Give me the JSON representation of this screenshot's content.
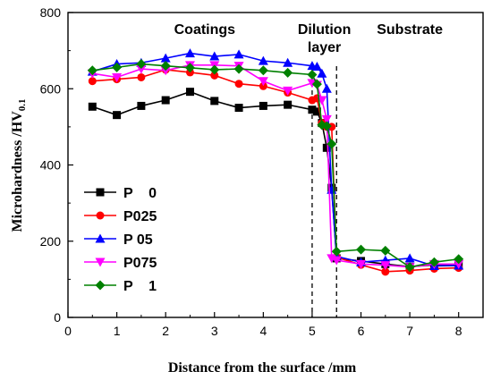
{
  "chart_data": {
    "type": "line",
    "xlabel": "Distance from the surface /mm",
    "ylabel_main": "Microhardness /HV",
    "ylabel_sub": "0.1",
    "xlim": [
      0,
      8.5
    ],
    "ylim": [
      0,
      800
    ],
    "xticks": [
      0,
      1,
      2,
      3,
      4,
      5,
      6,
      7,
      8
    ],
    "yticks": [
      0,
      200,
      400,
      600,
      800
    ],
    "grid": false,
    "legend_position": "bottom-left",
    "regions": [
      {
        "lines": [
          "Coatings"
        ],
        "x": 2.8
      },
      {
        "lines": [
          "Dilution",
          "layer"
        ],
        "x": 5.25
      },
      {
        "lines": [
          "Substrate"
        ],
        "x": 7.0
      }
    ],
    "boundaries": [
      5.0,
      5.5
    ],
    "series": [
      {
        "name": "P    0",
        "color": "#000000",
        "marker": "square",
        "x": [
          0.5,
          1.0,
          1.5,
          2.0,
          2.5,
          3.0,
          3.5,
          4.0,
          4.5,
          5.0,
          5.1,
          5.2,
          5.3,
          5.4,
          5.5,
          6.0,
          6.5,
          7.0,
          7.5,
          8.0
        ],
        "y": [
          553,
          531,
          555,
          570,
          592,
          568,
          550,
          555,
          558,
          545,
          540,
          510,
          445,
          340,
          155,
          148,
          140,
          133,
          138,
          138
        ]
      },
      {
        "name": "P025",
        "color": "#ff0000",
        "marker": "circle",
        "x": [
          0.5,
          1.0,
          1.5,
          2.0,
          2.5,
          3.0,
          3.5,
          4.0,
          4.5,
          5.0,
          5.1,
          5.2,
          5.3,
          5.4,
          5.5,
          6.0,
          6.5,
          7.0,
          7.5,
          8.0
        ],
        "y": [
          620,
          625,
          630,
          650,
          643,
          635,
          613,
          607,
          590,
          570,
          575,
          510,
          500,
          500,
          158,
          138,
          120,
          123,
          128,
          130
        ]
      },
      {
        "name": "P 05",
        "color": "#0000ff",
        "marker": "triangle",
        "x": [
          0.5,
          1.0,
          1.5,
          2.0,
          2.5,
          3.0,
          3.5,
          4.0,
          4.5,
          5.0,
          5.1,
          5.2,
          5.3,
          5.4,
          5.5,
          6.0,
          6.5,
          7.0,
          7.5,
          8.0
        ],
        "y": [
          645,
          665,
          668,
          680,
          693,
          685,
          690,
          673,
          668,
          660,
          658,
          640,
          600,
          335,
          160,
          145,
          150,
          155,
          135,
          136
        ]
      },
      {
        "name": "P075",
        "color": "#ff00ff",
        "marker": "triangle-down",
        "x": [
          0.5,
          1.0,
          1.5,
          2.0,
          2.5,
          3.0,
          3.5,
          4.0,
          4.5,
          5.0,
          5.1,
          5.2,
          5.3,
          5.4,
          5.5,
          6.0,
          6.5,
          7.0,
          7.5,
          8.0
        ],
        "y": [
          640,
          630,
          652,
          648,
          662,
          662,
          660,
          620,
          595,
          615,
          610,
          570,
          520,
          155,
          150,
          140,
          137,
          132,
          140,
          140
        ]
      },
      {
        "name": "P    1",
        "color": "#008000",
        "marker": "diamond",
        "x": [
          0.5,
          1.0,
          1.5,
          2.0,
          2.5,
          3.0,
          3.5,
          4.0,
          4.5,
          5.0,
          5.1,
          5.2,
          5.3,
          5.4,
          5.5,
          6.0,
          6.5,
          7.0,
          7.5,
          8.0
        ],
        "y": [
          648,
          656,
          665,
          660,
          655,
          650,
          652,
          648,
          642,
          637,
          612,
          505,
          502,
          455,
          173,
          178,
          175,
          132,
          145,
          153
        ]
      }
    ]
  }
}
